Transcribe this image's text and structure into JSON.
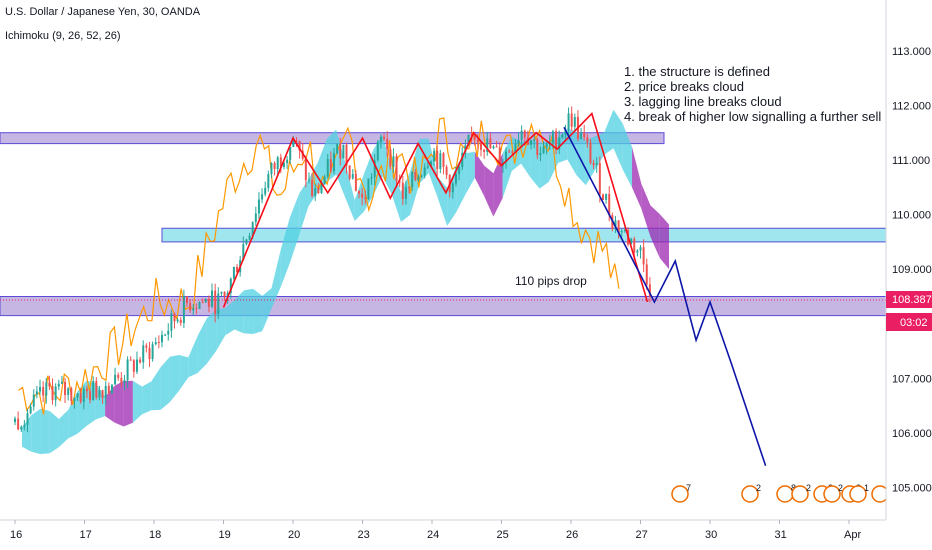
{
  "header": {
    "symbol_line": "U.S. Dollar / Japanese Yen, 30, OANDA",
    "indicator_line": "Ichimoku (9, 26, 52, 26)"
  },
  "annotations": {
    "notes": [
      "1. the structure is defined",
      "2. price breaks cloud",
      "3. lagging line breaks cloud",
      "4. break of higher low signalling a further sell"
    ],
    "drop_label": "110 pips drop"
  },
  "price_tags": {
    "last_price": "108.387",
    "countdown": "03:02",
    "last_price_color": "#e91e63",
    "countdown_color": "#e91e63"
  },
  "colors": {
    "candle_up": "#26a69a",
    "candle_down": "#ef5350",
    "cloud_bull": "#4dd0e1",
    "cloud_bear": "#9c27b0",
    "lagging_line": "#ff9800",
    "zone_fill": "#b39ddb",
    "zone_fill_cyan": "#80deea",
    "zigzag": "#f70d1a",
    "projection": "#0d16a8",
    "event_badge": "#ef6c00"
  },
  "chart_data": {
    "type": "line",
    "title": "U.S. Dollar / Japanese Yen, 30, OANDA",
    "xlabel": "",
    "ylabel": "",
    "ylim": [
      104.5,
      113.6
    ],
    "grid": false,
    "x_tick_labels": [
      "16",
      "17",
      "18",
      "19",
      "20",
      "23",
      "24",
      "25",
      "26",
      "27",
      "30",
      "31",
      "Apr"
    ],
    "y_tick_labels": [
      "113.000",
      "112.000",
      "111.000",
      "110.000",
      "109.000",
      "107.000",
      "106.000",
      "105.000"
    ],
    "y_ticks": [
      113,
      112,
      111,
      110,
      109,
      107,
      106,
      105
    ],
    "x_day_index": [
      0,
      1,
      2,
      3,
      4,
      5,
      6,
      7,
      8,
      9,
      10,
      11,
      12
    ],
    "series": [
      {
        "name": "",
        "kind": "price-approx",
        "x": [
          0,
          0.5,
          1,
          1.5,
          2,
          2.5,
          3,
          3.3,
          3.6,
          4,
          4.3,
          4.7,
          5,
          5.3,
          5.6,
          6,
          6.3,
          6.6,
          7,
          7.3,
          7.6,
          7.9,
          8,
          8.3,
          8.6,
          9,
          9.2
        ],
        "y": [
          106.2,
          106.8,
          106.7,
          107.0,
          107.6,
          108.4,
          108.4,
          109.5,
          110.6,
          111.4,
          110.3,
          111.3,
          110.2,
          111.5,
          110.3,
          111.2,
          110.5,
          111.5,
          111.0,
          111.6,
          111.1,
          111.6,
          111.8,
          111.0,
          109.9,
          109.3,
          108.4
        ]
      }
    ],
    "zones": [
      {
        "y_top": 111.5,
        "y_bottom": 111.3
      },
      {
        "y_top": 109.75,
        "y_bottom": 109.5
      },
      {
        "y_top": 108.5,
        "y_bottom": 108.15
      }
    ],
    "zigzag": {
      "x": [
        3.0,
        4.0,
        4.5,
        5.0,
        5.4,
        5.8,
        6.2,
        6.6,
        7.0,
        7.5,
        7.8,
        8.3,
        9.1
      ],
      "y": [
        108.3,
        111.4,
        110.4,
        111.4,
        110.3,
        111.3,
        110.4,
        111.5,
        110.9,
        111.5,
        111.2,
        111.85,
        108.4
      ]
    },
    "projection": {
      "x": [
        7.9,
        9.2,
        9.5,
        9.8,
        10.0,
        10.3,
        10.8
      ],
      "y": [
        111.6,
        108.4,
        109.15,
        107.7,
        108.4,
        107.3,
        105.4
      ]
    },
    "event_badges": [
      "7",
      "2",
      "8",
      "2",
      "2",
      "2",
      "8",
      "1",
      "5"
    ]
  }
}
